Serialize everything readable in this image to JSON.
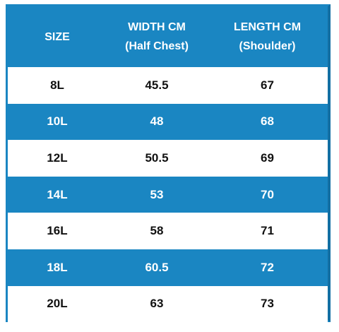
{
  "table": {
    "header": [
      [
        "SIZE"
      ],
      [
        "WIDTH CM",
        "(Half Chest)"
      ],
      [
        "LENGTH CM",
        "(Shoulder)"
      ]
    ],
    "rows": [
      [
        "8L",
        45.5,
        67
      ],
      [
        "10L",
        48,
        68
      ],
      [
        "12L",
        50.5,
        69
      ],
      [
        "14L",
        53,
        70
      ],
      [
        "16L",
        58,
        71
      ],
      [
        "18L",
        60.5,
        72
      ],
      [
        "20L",
        63,
        73
      ]
    ]
  }
}
